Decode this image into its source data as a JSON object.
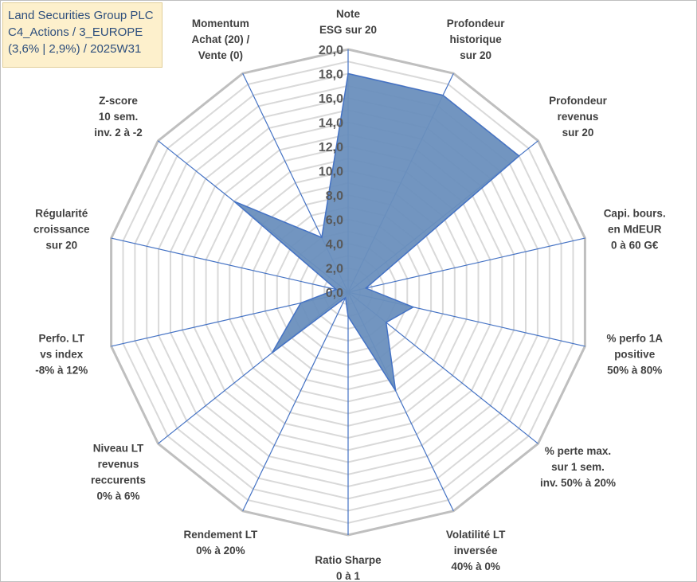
{
  "title_box": {
    "line1": "Land Securities Group PLC",
    "line2": "C4_Actions / 3_EUROPE",
    "line3": "(3,6% | 2,9%) / 2025W31"
  },
  "chart_data": {
    "type": "radar",
    "rmax": 20,
    "rmin": 0,
    "tick_step": 2,
    "tick_labels": [
      "0,0",
      "2,0",
      "4,0",
      "6,0",
      "8,0",
      "10,0",
      "12,0",
      "14,0",
      "16,0",
      "18,0",
      "20,0"
    ],
    "categories": [
      [
        "Note",
        "ESG sur 20"
      ],
      [
        "Profondeur",
        "historique",
        "sur 20"
      ],
      [
        "Profondeur",
        "revenus",
        "sur 20"
      ],
      [
        "Capi. bours.",
        "en MdEUR",
        "0 à 60 G€"
      ],
      [
        "% perfo 1A",
        "positive",
        "50% à 80%"
      ],
      [
        "% perte max.",
        "sur 1 sem.",
        "inv. 50% à 20%"
      ],
      [
        "Volatilité LT",
        "inversée",
        "40% à 0%"
      ],
      [
        "Ratio Sharpe",
        "0 à 1"
      ],
      [
        "Rendement LT",
        "0% à 20%"
      ],
      [
        "Niveau LT",
        "revenus",
        "reccurents",
        "0% à 6%"
      ],
      [
        "Perfo. LT",
        "vs index",
        "-8% à 12%"
      ],
      [
        "Régularité",
        "croissance",
        "sur 20"
      ],
      [
        "Z-score",
        "10 sem.",
        "inv. 2 à -2"
      ],
      [
        "Momentum",
        "Achat (20) /",
        "Vente (0)"
      ]
    ],
    "series": [
      {
        "values": [
          18.0,
          18.0,
          18.0,
          1.5,
          5.5,
          4.0,
          9.0,
          2.0,
          0.5,
          8.0,
          4.0,
          1.0,
          12.0,
          5.0
        ]
      }
    ],
    "colors": {
      "fill": "#6a8fbd",
      "stroke": "#4472c4",
      "axis": "#4472c4",
      "grid": "#d9d9d9",
      "outer": "#bfbfbf"
    },
    "grid": true,
    "legend": "none"
  }
}
